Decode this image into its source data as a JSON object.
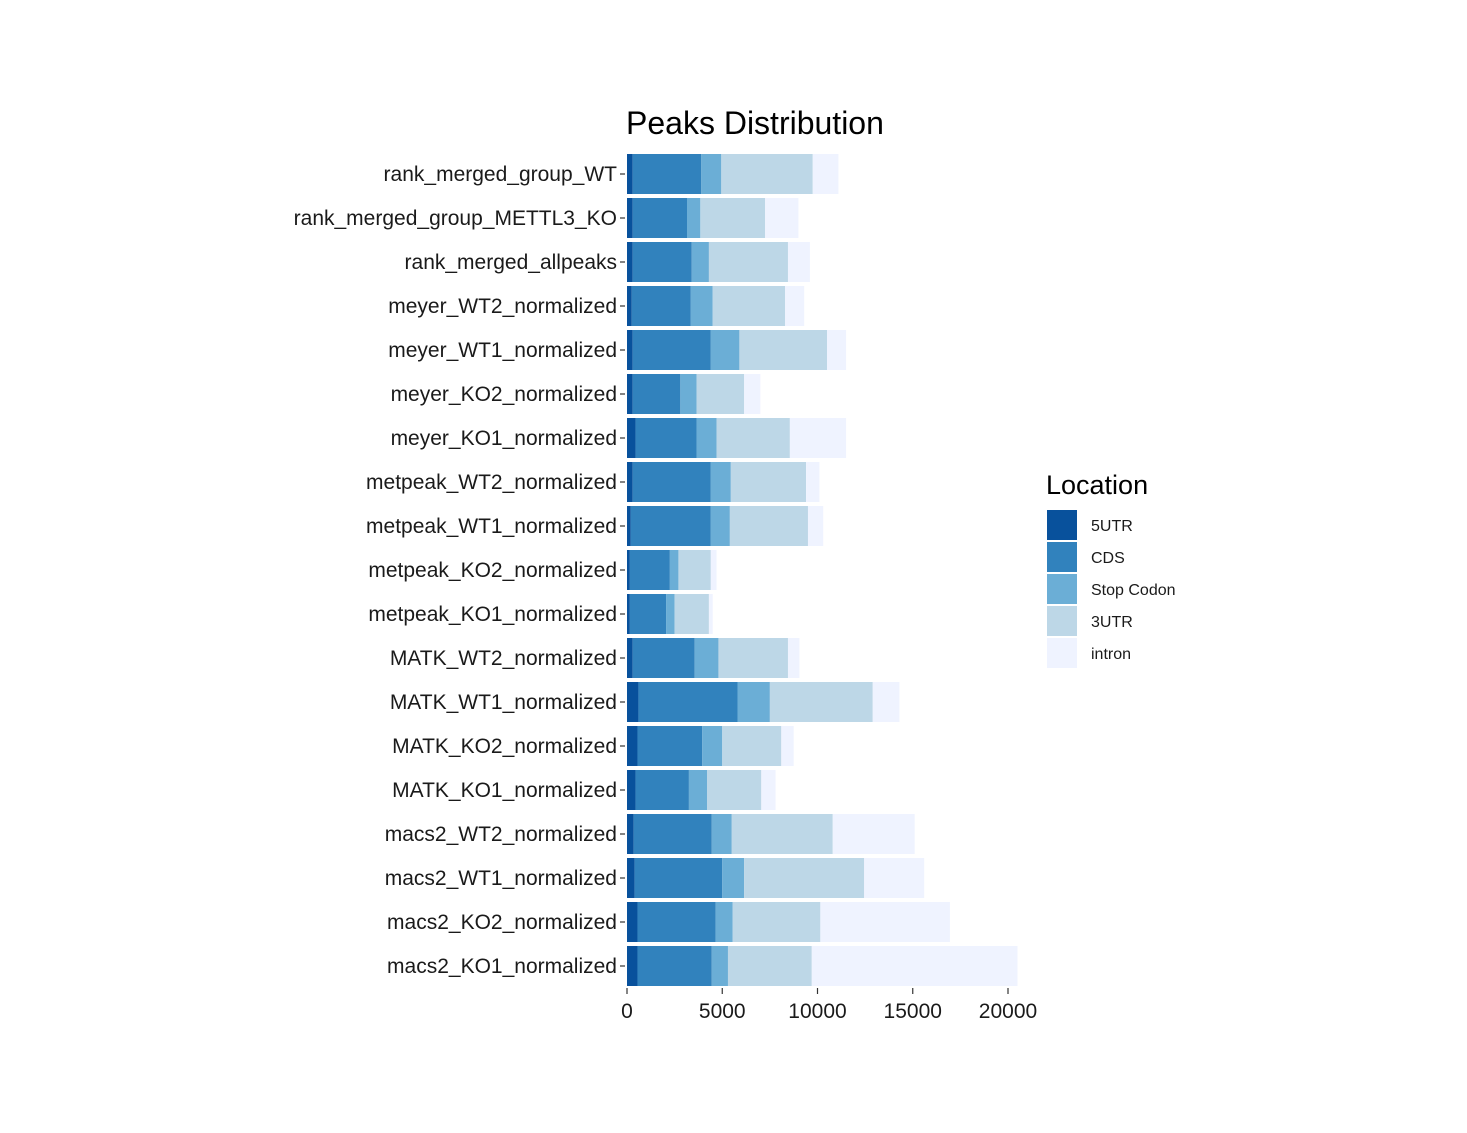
{
  "chart_data": {
    "type": "bar",
    "orientation": "horizontal",
    "stacked": true,
    "title": "Peaks Distribution",
    "xlabel": "",
    "ylabel": "",
    "xlim": [
      0,
      20500
    ],
    "xticks": [
      0,
      5000,
      10000,
      15000,
      20000
    ],
    "xtick_labels": [
      "0",
      "5000",
      "10000",
      "15000",
      "20000"
    ],
    "grid": false,
    "legend": {
      "title": "Location",
      "position": "right"
    },
    "categories": [
      "rank_merged_group_WT",
      "rank_merged_group_METTL3_KO",
      "rank_merged_allpeaks",
      "meyer_WT2_normalized",
      "meyer_WT1_normalized",
      "meyer_KO2_normalized",
      "meyer_KO1_normalized",
      "metpeak_WT2_normalized",
      "metpeak_WT1_normalized",
      "metpeak_KO2_normalized",
      "metpeak_KO1_normalized",
      "MATK_WT2_normalized",
      "MATK_WT1_normalized",
      "MATK_KO2_normalized",
      "MATK_KO1_normalized",
      "macs2_WT2_normalized",
      "macs2_WT1_normalized",
      "macs2_KO2_normalized",
      "macs2_KO1_normalized"
    ],
    "series": [
      {
        "name": "5UTR",
        "color": "#08519c",
        "values": [
          300,
          300,
          300,
          250,
          300,
          300,
          450,
          300,
          200,
          150,
          150,
          300,
          600,
          550,
          450,
          350,
          400,
          550,
          550
        ]
      },
      {
        "name": "CDS",
        "color": "#3182bd",
        "values": [
          3600,
          2850,
          3100,
          3100,
          4100,
          2500,
          3200,
          4100,
          4200,
          2100,
          1900,
          3250,
          5200,
          3400,
          2800,
          4100,
          4600,
          4100,
          3900
        ]
      },
      {
        "name": "Stop Codon",
        "color": "#6baed6",
        "values": [
          1050,
          700,
          900,
          1150,
          1500,
          850,
          1050,
          1050,
          1000,
          450,
          450,
          1250,
          1700,
          1050,
          950,
          1050,
          1150,
          900,
          850
        ]
      },
      {
        "name": "3UTR",
        "color": "#bdd7e7",
        "values": [
          4800,
          3400,
          4150,
          3800,
          4600,
          2500,
          3850,
          3950,
          4100,
          1700,
          1800,
          3650,
          5400,
          3100,
          2850,
          5300,
          6300,
          4600,
          4400
        ]
      },
      {
        "name": "intron",
        "color": "#eff3ff",
        "values": [
          1350,
          1750,
          1150,
          1000,
          1000,
          850,
          2950,
          700,
          800,
          300,
          200,
          600,
          1400,
          650,
          750,
          4300,
          3150,
          6800,
          10800
        ]
      }
    ]
  }
}
